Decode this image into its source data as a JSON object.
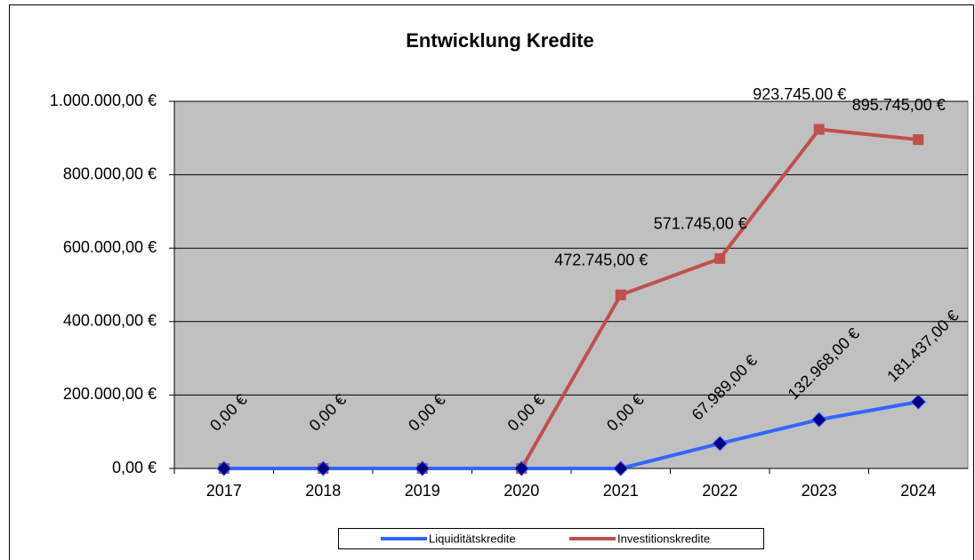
{
  "chart_data": {
    "type": "line",
    "title": "Entwicklung Kredite",
    "categories": [
      "2017",
      "2018",
      "2019",
      "2020",
      "2021",
      "2022",
      "2023",
      "2024"
    ],
    "series": [
      {
        "name": "Liquiditätskredite",
        "color": "#3366ff",
        "marker_color": "#000080",
        "marker": "diamond",
        "values": [
          0,
          0,
          0,
          0,
          0,
          67989,
          132968,
          181437
        ],
        "value_labels": [
          "0,00 €",
          "0,00 €",
          "0,00 €",
          "0,00 €",
          "0,00 €",
          "67.989,00 €",
          "132.968,00 €",
          "181.437,00 €"
        ]
      },
      {
        "name": "Investitionskredite",
        "color": "#c0504d",
        "marker_color": "#c0504d",
        "marker": "square",
        "values": [
          0,
          0,
          0,
          0,
          472745,
          571745,
          923745,
          895745
        ],
        "value_labels": [
          null,
          null,
          null,
          null,
          "472.745,00 €",
          "571.745,00 €",
          "923.745,00 €",
          "895.745,00 €"
        ]
      }
    ],
    "ylim": [
      0,
      1000000
    ],
    "yticks": [
      {
        "value": 0,
        "label": "0,00 €"
      },
      {
        "value": 200000,
        "label": "200.000,00 €"
      },
      {
        "value": 400000,
        "label": "400.000,00 €"
      },
      {
        "value": 600000,
        "label": "600.000,00 €"
      },
      {
        "value": 800000,
        "label": "800.000,00 €"
      },
      {
        "value": 1000000,
        "label": "1.000.000,00 €"
      }
    ],
    "grid": true,
    "legend": "bottom"
  }
}
